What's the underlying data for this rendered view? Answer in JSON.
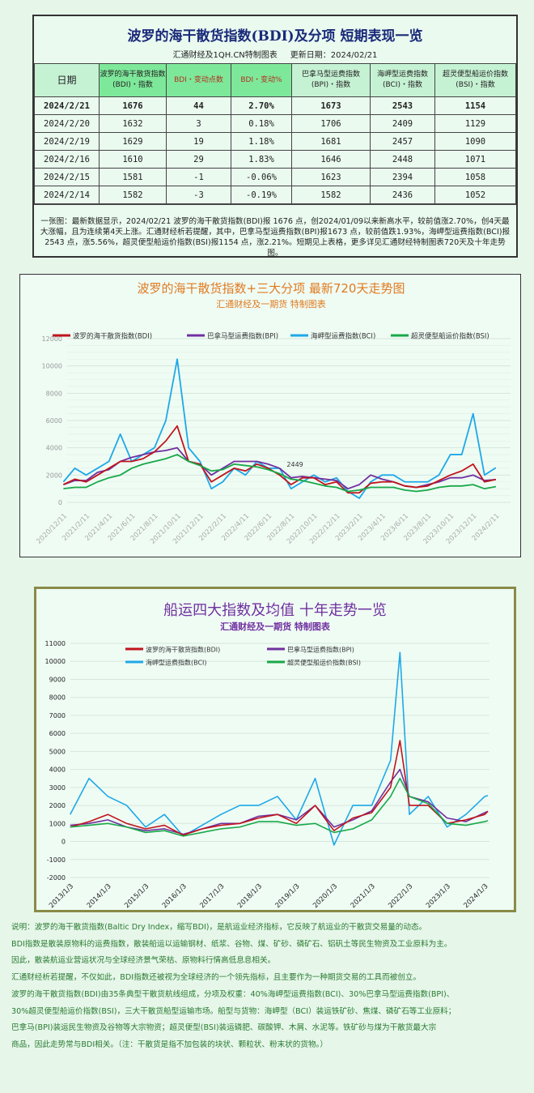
{
  "table": {
    "title": "波罗的海干散货指数(BDI)及分项 短期表现一览",
    "source": "汇通财经及1QH.CN特制图表",
    "updated": "更新日期：2024/02/21",
    "headers": [
      "日期",
      "波罗的海干散货指数(BDI)・指数",
      "BDI・变动点数",
      "BDI・变动%",
      "巴拿马型运费指数(BPI)・指数",
      "海岬型运费指数(BCI)・指数",
      "超灵便型船运价指数(BSI)・指数"
    ],
    "rows": [
      [
        "2024/2/21",
        "1676",
        "44",
        "2.70%",
        "1673",
        "2543",
        "1154"
      ],
      [
        "2024/2/20",
        "1632",
        "3",
        "0.18%",
        "1706",
        "2409",
        "1129"
      ],
      [
        "2024/2/19",
        "1629",
        "19",
        "1.18%",
        "1681",
        "2457",
        "1090"
      ],
      [
        "2024/2/16",
        "1610",
        "29",
        "1.83%",
        "1646",
        "2448",
        "1071"
      ],
      [
        "2024/2/15",
        "1581",
        "-1",
        "-0.06%",
        "1623",
        "2394",
        "1058"
      ],
      [
        "2024/2/14",
        "1582",
        "-3",
        "-0.19%",
        "1582",
        "2436",
        "1052"
      ]
    ],
    "note": "一张图：最新数据显示，2024/02/21 波罗的海干散货指数(BDI)报 1676 点，创2024/01/09以来新高水平，较前值涨2.70%，创4天最大涨幅，且为连续第4天上涨。汇通财经析若提醒，其中，巴拿马型运费指数(BPI)报1673 点，较前值跌1.93%，海岬型运费指数(BCI)报2543 点，涨5.56%，超灵便型船运价指数(BSI)报1154 点，涨2.21%。短期见上表格，更多详见汇通财经特制图表720天及十年走势图。"
  },
  "colors": {
    "BDI": "#c0141c",
    "BPI": "#7030a0",
    "BCI": "#1ea8e8",
    "BSI": "#18a848",
    "title1": "#e07a20",
    "title2": "#7030a0"
  },
  "chart_data": [
    {
      "type": "line",
      "title": "波罗的海干散货指数+三大分项  最新720天走势图",
      "subtitle": "汇通财经及一期货  特制图表",
      "ylim": [
        0,
        12000
      ],
      "yticks": [
        0,
        2000,
        4000,
        6000,
        8000,
        10000,
        12000
      ],
      "xtick_labels": [
        "2020/12/11",
        "2021/2/11",
        "2021/4/11",
        "2021/6/11",
        "2021/8/11",
        "2021/10/11",
        "2021/12/11",
        "2022/2/11",
        "2022/4/11",
        "2022/6/11",
        "2022/8/11",
        "2022/10/11",
        "2022/12/11",
        "2023/2/11",
        "2023/4/11",
        "2023/6/11",
        "2023/8/11",
        "2023/10/11",
        "2023/12/11",
        "2024/2/11"
      ],
      "legend": "top",
      "grid": true,
      "annotation": "2449",
      "x": [
        "2020/12",
        "2021/1",
        "2021/2",
        "2021/3",
        "2021/4",
        "2021/5",
        "2021/6",
        "2021/7",
        "2021/8",
        "2021/9",
        "2021/10",
        "2021/11",
        "2021/12",
        "2022/1",
        "2022/2",
        "2022/3",
        "2022/4",
        "2022/5",
        "2022/6",
        "2022/7",
        "2022/8",
        "2022/9",
        "2022/10",
        "2022/11",
        "2022/12",
        "2023/1",
        "2023/2",
        "2023/3",
        "2023/4",
        "2023/5",
        "2023/6",
        "2023/7",
        "2023/8",
        "2023/9",
        "2023/10",
        "2023/11",
        "2023/12",
        "2024/1",
        "2024/2"
      ],
      "series": [
        {
          "key": "BDI",
          "name": "波罗的海干散货指数(BDI)",
          "values": [
            1300,
            1700,
            1500,
            2000,
            2500,
            3000,
            3000,
            3200,
            3700,
            4500,
            5600,
            3000,
            2800,
            1500,
            2000,
            2500,
            2300,
            2800,
            2500,
            2000,
            1300,
            1800,
            1800,
            1300,
            1500,
            700,
            700,
            1400,
            1500,
            1500,
            1200,
            1100,
            1200,
            1600,
            2000,
            2300,
            2800,
            1500,
            1676
          ]
        },
        {
          "key": "BPI",
          "name": "巴拿马型运费指数(BPI)",
          "values": [
            1300,
            1600,
            1600,
            2200,
            2400,
            3000,
            3300,
            3500,
            3700,
            3800,
            4000,
            3000,
            2800,
            2000,
            2500,
            3000,
            3000,
            3000,
            2800,
            2500,
            1800,
            1900,
            1800,
            1700,
            1600,
            1000,
            1300,
            2000,
            1700,
            1500,
            1200,
            1100,
            1300,
            1500,
            1800,
            1800,
            2000,
            1600,
            1673
          ]
        },
        {
          "key": "BCI",
          "name": "海岬型运费指数(BCI)",
          "values": [
            1500,
            2500,
            2000,
            2500,
            3000,
            5000,
            3000,
            3500,
            4000,
            6000,
            10500,
            4000,
            3000,
            1000,
            1500,
            2500,
            2000,
            3000,
            2500,
            2500,
            1000,
            1500,
            2000,
            1500,
            1800,
            800,
            300,
            1500,
            2000,
            2000,
            1500,
            1500,
            1500,
            2000,
            3500,
            3500,
            6500,
            2000,
            2543
          ]
        },
        {
          "key": "BSI",
          "name": "超灵便型船运价指数(BSI)",
          "values": [
            1000,
            1100,
            1100,
            1500,
            1800,
            2000,
            2500,
            2800,
            3000,
            3200,
            3500,
            3000,
            2700,
            2300,
            2400,
            2800,
            2700,
            2600,
            2400,
            2100,
            1700,
            1600,
            1400,
            1200,
            1100,
            800,
            900,
            1100,
            1100,
            1100,
            900,
            800,
            900,
            1100,
            1200,
            1200,
            1300,
            1000,
            1154
          ]
        }
      ]
    },
    {
      "type": "line",
      "title": "船运四大指数及均值 十年走势一览",
      "subtitle": "汇通财经及一期货 特制图表",
      "ylim": [
        -2000,
        11000
      ],
      "yticks": [
        -2000,
        -1000,
        0,
        1000,
        2000,
        3000,
        4000,
        5000,
        6000,
        7000,
        8000,
        9000,
        10000,
        11000
      ],
      "xtick_labels": [
        "2013/1/3",
        "2014/1/3",
        "2015/1/3",
        "2016/1/3",
        "2017/1/3",
        "2018/1/3",
        "2019/1/3",
        "2020/1/3",
        "2021/1/3",
        "2022/1/3",
        "2023/1/3",
        "2024/1/3"
      ],
      "legend": "top",
      "grid": true,
      "x": [
        "2013/1",
        "2013/7",
        "2014/1",
        "2014/7",
        "2015/1",
        "2015/7",
        "2016/1",
        "2016/7",
        "2017/1",
        "2017/7",
        "2018/1",
        "2018/7",
        "2019/1",
        "2019/7",
        "2020/1",
        "2020/7",
        "2021/1",
        "2021/7",
        "2021/10",
        "2022/1",
        "2022/7",
        "2023/1",
        "2023/7",
        "2024/1",
        "2024/2"
      ],
      "series": [
        {
          "key": "BDI",
          "name": "波罗的海干散货指数(BDI)",
          "values": [
            800,
            1100,
            1500,
            1000,
            700,
            900,
            350,
            700,
            900,
            1000,
            1300,
            1500,
            1000,
            2000,
            600,
            1300,
            1600,
            3000,
            5600,
            2000,
            2000,
            1000,
            1200,
            1500,
            1676
          ]
        },
        {
          "key": "BPI",
          "name": "巴拿马型运费指数(BPI)",
          "values": [
            900,
            1000,
            1200,
            800,
            600,
            700,
            400,
            700,
            1000,
            1000,
            1400,
            1500,
            1200,
            2000,
            800,
            1200,
            1700,
            3300,
            4000,
            2500,
            2200,
            1300,
            1100,
            1600,
            1673
          ]
        },
        {
          "key": "BCI",
          "name": "海岬型运费指数(BCI)",
          "values": [
            1500,
            3500,
            2500,
            2000,
            800,
            1500,
            300,
            900,
            1500,
            2000,
            2000,
            2500,
            1200,
            3500,
            -200,
            2000,
            2000,
            4500,
            10500,
            1500,
            2500,
            800,
            1500,
            2500,
            2543
          ]
        },
        {
          "key": "BSI",
          "name": "超灵便型船运价指数(BSI)",
          "values": [
            800,
            900,
            1000,
            800,
            500,
            600,
            300,
            500,
            700,
            800,
            1100,
            1100,
            900,
            1000,
            500,
            700,
            1200,
            2500,
            3500,
            2500,
            2100,
            1000,
            900,
            1100,
            1154
          ]
        }
      ]
    }
  ],
  "description": [
    "说明：波罗的海干散货指数(Baltic Dry Index，缩写BDI)，是航运业经济指标，它反映了航运业的干散货交易量的动态。",
    "BDI指数是散装原物料的运费指数，散装船运以运输钢材、纸浆、谷物、煤、矿砂、磷矿石、铝矾土等民生物资及工业原料为主。",
    "因此，散装航运业营运状况与全球经济景气荣枯、原物料行情高低息息相关。",
    "汇通财经析若提醒，不仅如此，BDI指数还被视为全球经济的一个领先指标，且主要作为一种期货交易的工具而被创立。",
    "波罗的海干散货指数(BDI)由35条典型干散货航线组成，分项及权重：40%海岬型运费指数(BCI)、30%巴拿马型运费指数(BPI)、",
    "30%超灵便型船运价指数(BSI)，三大干散货船型运输市场。船型与货物：海岬型（BCI）装运铁矿砂、焦煤、磷矿石等工业原料；",
    "巴拿马(BPI)装运民生物资及谷物等大宗物资；超灵便型(BSI)装运磷肥、碳酸钾、木屑、水泥等。铁矿砂与煤为干散货最大宗",
    "商品，因此走势常与BDI相关。（注：干散货是指不加包装的块状、颗粒状、粉末状的货物。）"
  ]
}
